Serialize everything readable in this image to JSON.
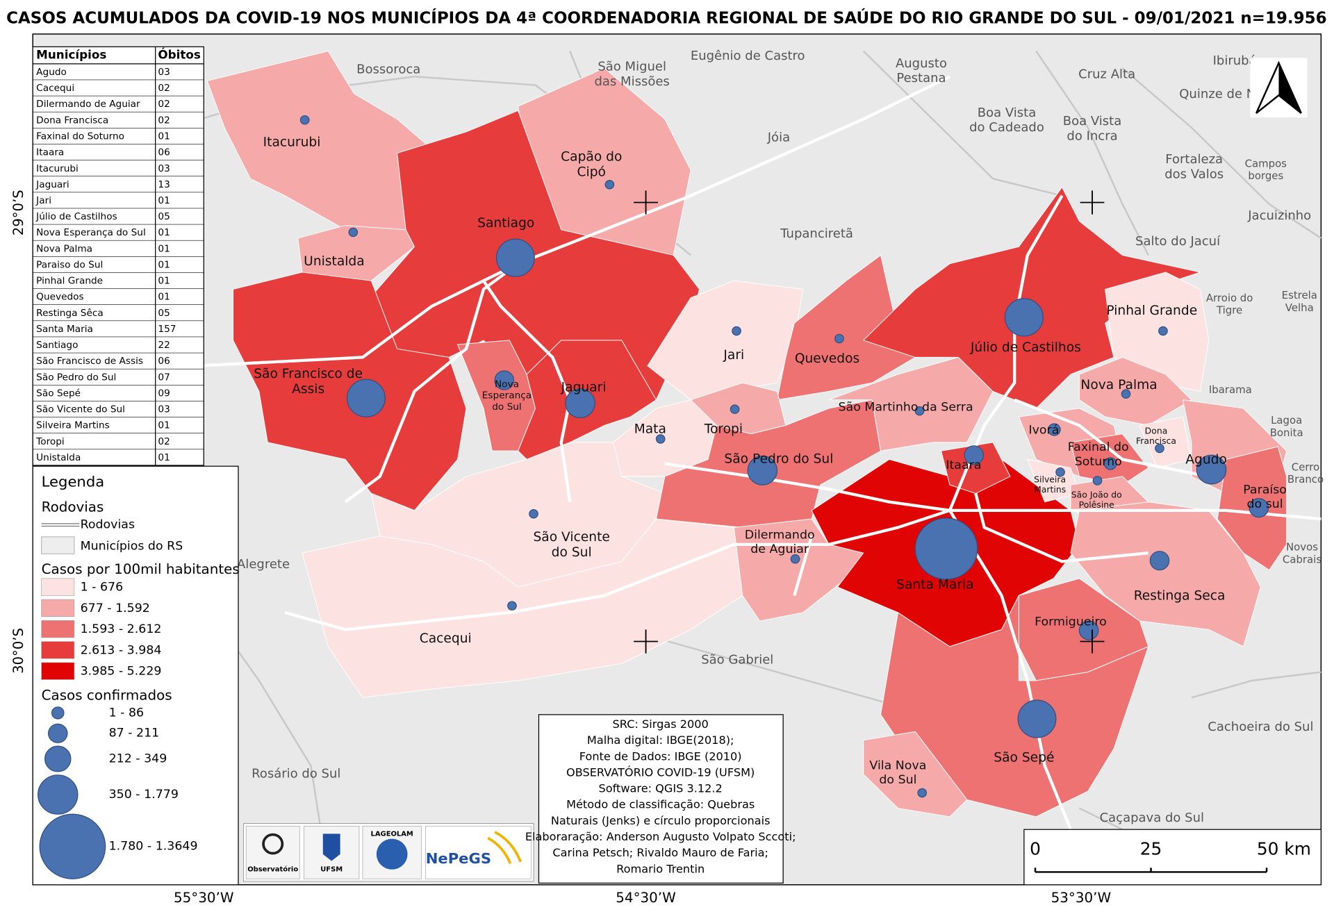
{
  "title": "CASOS ACUMULADOS DA COVID-19 NOS MUNICÍPIOS DA 4ª COORDENADORIA REGIONAL DE SAÚDE DO RIO GRANDE DO SUL - 09/01/2021 n=19.956",
  "table": {
    "header": [
      "Municípios",
      "Óbitos"
    ],
    "rows": [
      [
        "Agudo",
        "03"
      ],
      [
        "Cacequi",
        "02"
      ],
      [
        "Dilermando de Aguiar",
        "02"
      ],
      [
        "Dona Francisca",
        "02"
      ],
      [
        "Faxinal do Soturno",
        "01"
      ],
      [
        "Itaara",
        "06"
      ],
      [
        "Itacurubi",
        "03"
      ],
      [
        "Jaguari",
        "13"
      ],
      [
        "Jari",
        "01"
      ],
      [
        "Júlio de Castilhos",
        "05"
      ],
      [
        "Nova Esperança do Sul",
        "01"
      ],
      [
        "Nova Palma",
        "01"
      ],
      [
        "Paraiso do Sul",
        "01"
      ],
      [
        "Pinhal Grande",
        "01"
      ],
      [
        "Quevedos",
        "01"
      ],
      [
        "Restinga Sêca",
        "05"
      ],
      [
        "Santa Maria",
        "157"
      ],
      [
        "Santiago",
        "22"
      ],
      [
        "São Francisco de Assis",
        "06"
      ],
      [
        "São Pedro do Sul",
        "07"
      ],
      [
        "São Sepé",
        "09"
      ],
      [
        "São Vicente do Sul",
        "03"
      ],
      [
        "Silveira Martins",
        "01"
      ],
      [
        "Toropi",
        "02"
      ],
      [
        "Unistalda",
        "01"
      ]
    ]
  },
  "legend": {
    "title": "Legenda",
    "roads_heading": "Rodovias",
    "roads_item": "Rodovias",
    "municipalities_item": "Municípios do RS",
    "rate_heading": "Casos por 100mil habitantes",
    "rate_classes": [
      {
        "label": "1 - 676",
        "color": "#fde2e2"
      },
      {
        "label": "677 - 1.592",
        "color": "#f6a9a9"
      },
      {
        "label": "1.593 - 2.612",
        "color": "#ee7272"
      },
      {
        "label": "2.613 - 3.984",
        "color": "#e73c3c"
      },
      {
        "label": "3.985 - 5.229",
        "color": "#e00404"
      }
    ],
    "cases_heading": "Casos confirmados",
    "cases_classes": [
      "1 - 86",
      "87 - 211",
      "212 - 349",
      "350 - 1.779",
      "1.780 - 1.3649"
    ],
    "circle_color": "#4a72b0"
  },
  "municipality_labels": [
    [
      "Itacurubi"
    ],
    [
      "Capão do",
      "Cipó"
    ],
    [
      "Santiago"
    ],
    [
      "Unistalda"
    ],
    [
      "São Francisco de",
      "Assis"
    ],
    [
      "Nova",
      "Esperança",
      "do Sul"
    ],
    [
      "Jaguari"
    ],
    [
      "Jari"
    ],
    [
      "Quevedos"
    ],
    [
      "São Martinho da Serra"
    ],
    [
      "Júlio de Castilhos"
    ],
    [
      "Pinhal Grande"
    ],
    [
      "Nova Palma"
    ],
    [
      "Mata"
    ],
    [
      "Toropi"
    ],
    [
      "São Pedro do Sul"
    ],
    [
      "Itaara"
    ],
    [
      "Ivorá"
    ],
    [
      "Faxinal do",
      "Soturno"
    ],
    [
      "Dona",
      "Francisca"
    ],
    [
      "Agudo"
    ],
    [
      "Silveira",
      "Martins"
    ],
    [
      "São João do",
      "Polêsine"
    ],
    [
      "Paraíso",
      "do sul"
    ],
    [
      "São Vicente",
      "do Sul"
    ],
    [
      "Dilermando",
      "de Aguiar"
    ],
    [
      "Santa Maria"
    ],
    [
      "Restinga Seca"
    ],
    [
      "Formigueiro"
    ],
    [
      "Cacequi"
    ],
    [
      "São Sepé"
    ],
    [
      "Vila Nova",
      "do Sul"
    ]
  ],
  "neighbor_labels": [
    [
      "Bossoroca"
    ],
    [
      "São Miguel",
      "das Missões"
    ],
    [
      "Eugênio de Castro"
    ],
    [
      "Augusto",
      "Pestana"
    ],
    [
      "Cruz Alta"
    ],
    [
      "Ibirubá"
    ],
    [
      "Quinze de N"
    ],
    [
      "Boa Vista",
      "do Cadeado"
    ],
    [
      "Boa Vista",
      "do Incra"
    ],
    [
      "Jóia"
    ],
    [
      "Fortaleza",
      "dos Valos"
    ],
    [
      "Campos",
      "borges"
    ],
    [
      "Tupanciretã"
    ],
    [
      "Salto do Jacuí"
    ],
    [
      "Jacuizinho"
    ],
    [
      "Arroio do",
      "Tigre"
    ],
    [
      "Estrela",
      "Velha"
    ],
    [
      "Ibarama"
    ],
    [
      "Lagoa",
      "Bonita"
    ],
    [
      "Cerro",
      "Branco"
    ],
    [
      "Novos",
      "Cabrais"
    ],
    [
      "Alegrete"
    ],
    [
      "São Gabriel"
    ],
    [
      "Cachoeira do Sul"
    ],
    [
      "Rosário do Sul"
    ],
    [
      "Caçapava do Sul"
    ]
  ],
  "coordinates": {
    "lat": [
      "29°0’S",
      "30°0’S"
    ],
    "lon": [
      "55°30’W",
      "54°30’W",
      "53°30’W"
    ]
  },
  "info_box": [
    "SRC: Sirgas 2000",
    "Malha digital: IBGE(2018);",
    "Fonte de Dados: IBGE (2010)",
    "OBSERVATÓRIO COVID-19 (UFSM)",
    "Software: QGIS 3.12.2",
    "Método de classificação: Quebras",
    "Naturais (Jenks) e círculo proporcionais",
    "Elaboraração: Anderson Augusto Volpato Sccoti;",
    "Carina Petsch; Rivaldo Mauro de Faria;",
    "Romario Trentin"
  ],
  "scale_bar": [
    "0",
    "25",
    "50 km"
  ],
  "logos": [
    "Observatório",
    "UFSM",
    "LAGEOLAM",
    "NePeGS"
  ]
}
